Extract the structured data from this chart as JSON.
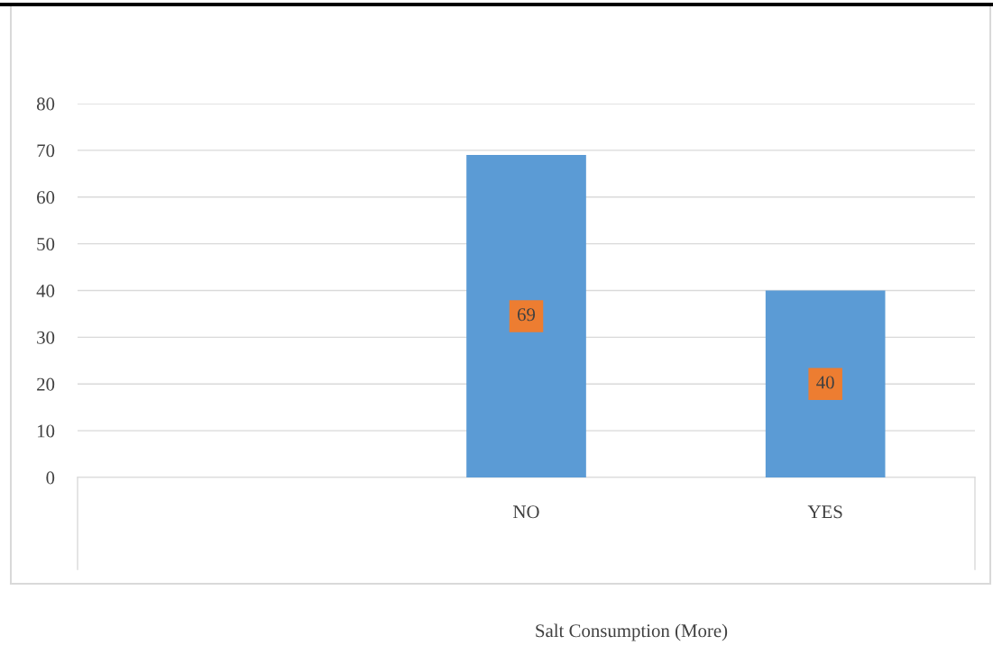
{
  "chart_data": {
    "type": "bar",
    "annotations": [
      "Salt Consumption (More)"
    ],
    "categories": [
      null,
      "NO",
      "YES"
    ],
    "values": [
      null,
      69,
      40
    ],
    "color": "#5b9bd5",
    "ylim": [
      0,
      80
    ],
    "yticks": [
      0,
      10,
      20,
      30,
      40,
      50,
      60,
      70,
      80
    ],
    "grid": "y",
    "data_labels": true
  }
}
